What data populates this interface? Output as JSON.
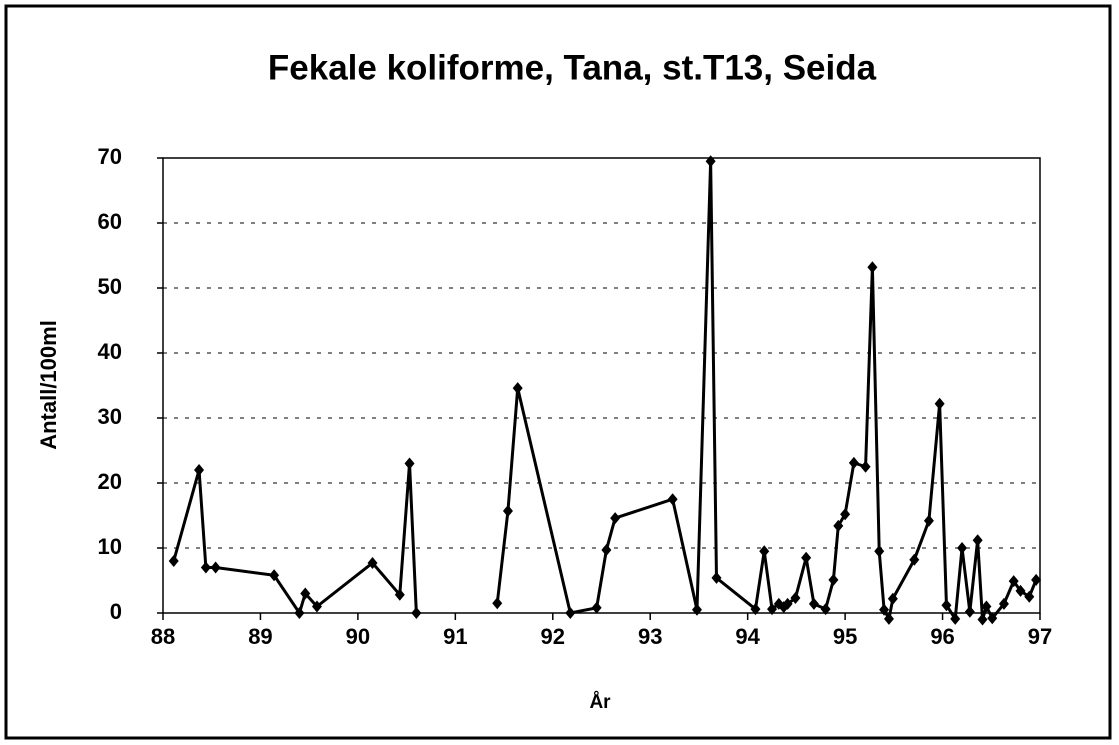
{
  "chart_data": {
    "type": "line",
    "title": "Fekale koliforme, Tana, st.T13, Seida",
    "xlabel": "År",
    "ylabel": "Antall/100ml",
    "x": [
      88.11,
      88.37,
      88.44,
      88.54,
      89.14,
      89.4,
      89.46,
      89.58,
      90.15,
      90.43,
      90.53,
      90.6,
      91.0,
      91.43,
      91.54,
      91.64,
      92.18,
      92.45,
      92.55,
      92.64,
      93.23,
      93.48,
      93.62,
      93.68,
      94.08,
      94.17,
      94.25,
      94.32,
      94.37,
      94.41,
      94.49,
      94.6,
      94.68,
      94.8,
      94.88,
      94.93,
      95.0,
      95.09,
      95.21,
      95.28,
      95.35,
      95.4,
      95.45,
      95.49,
      95.71,
      95.86,
      95.97,
      96.04,
      96.13,
      96.2,
      96.28,
      96.36,
      96.41,
      96.45,
      96.51,
      96.63,
      96.73,
      96.8,
      96.89,
      96.96
    ],
    "series": [
      {
        "name": "Fekale koliforme",
        "color": "#000000",
        "values": [
          8,
          22,
          7,
          7,
          5.8,
          0,
          3,
          1,
          7.7,
          2.8,
          23,
          0,
          null,
          1.5,
          15.7,
          34.6,
          0,
          0.8,
          9.7,
          14.6,
          17.5,
          0.5,
          69.5,
          5.4,
          0.6,
          9.5,
          0.6,
          1.4,
          0.9,
          1.4,
          2.3,
          8.5,
          1.4,
          0.6,
          5.1,
          13.4,
          15.2,
          23.1,
          22.5,
          53.2,
          9.5,
          0.5,
          -0.9,
          2.2,
          8.2,
          14.2,
          32.2,
          1.2,
          -0.9,
          10,
          0.2,
          11.2,
          -1,
          1,
          -0.8,
          1.4,
          4.9,
          3.4,
          2.5,
          5.1
        ]
      }
    ],
    "xlim": [
      88,
      97
    ],
    "xticks": [
      88,
      89,
      90,
      91,
      92,
      93,
      94,
      95,
      96,
      97
    ],
    "ylim": [
      0,
      70
    ],
    "yticks": [
      0,
      10,
      20,
      30,
      40,
      50,
      60,
      70
    ],
    "grid": true
  }
}
